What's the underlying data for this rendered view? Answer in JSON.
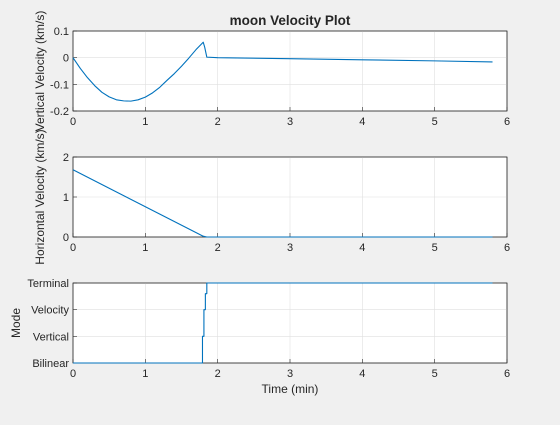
{
  "colors": {
    "background": "#f0f0f0",
    "axes": "#ffffff",
    "line": "#0072bd",
    "grid": "#dfdfdf",
    "text": "#262626"
  },
  "chart_data": [
    {
      "type": "line",
      "title": "moon Velocity Plot",
      "xlabel": "",
      "ylabel": "Vertical Velocity (km/s)",
      "xlim": [
        0,
        6
      ],
      "ylim": [
        -0.2,
        0.1
      ],
      "xticks": [
        0,
        1,
        2,
        3,
        4,
        5,
        6
      ],
      "yticks": [
        -0.2,
        -0.1,
        0,
        0.1
      ],
      "ytick_labels": [
        "-0.2",
        "-0.1",
        "0",
        "0.1"
      ],
      "grid": true,
      "series": [
        {
          "x": [
            0,
            0.1,
            0.2,
            0.3,
            0.4,
            0.5,
            0.6,
            0.7,
            0.8,
            0.9,
            1.0,
            1.1,
            1.2,
            1.3,
            1.4,
            1.5,
            1.6,
            1.7,
            1.8,
            1.82,
            1.85,
            2.0,
            3.0,
            4.0,
            5.0,
            5.8
          ],
          "y": [
            0,
            -0.04,
            -0.075,
            -0.105,
            -0.13,
            -0.147,
            -0.158,
            -0.162,
            -0.163,
            -0.158,
            -0.148,
            -0.132,
            -0.111,
            -0.085,
            -0.06,
            -0.032,
            -0.002,
            0.03,
            0.058,
            0.04,
            0.002,
            0.0,
            -0.004,
            -0.008,
            -0.012,
            -0.016
          ]
        }
      ]
    },
    {
      "type": "line",
      "title": "",
      "xlabel": "",
      "ylabel": "Horizontal Velocity (km/s)",
      "xlim": [
        0,
        6
      ],
      "ylim": [
        0,
        2
      ],
      "xticks": [
        0,
        1,
        2,
        3,
        4,
        5,
        6
      ],
      "yticks": [
        0,
        1,
        2
      ],
      "ytick_labels": [
        "0",
        "1",
        "2"
      ],
      "grid": true,
      "series": [
        {
          "x": [
            0,
            1.8,
            1.85,
            5.8
          ],
          "y": [
            1.68,
            0.02,
            0.0,
            0.0
          ]
        }
      ]
    },
    {
      "type": "line",
      "title": "",
      "xlabel": "Time (min)",
      "ylabel": "Mode",
      "xlim": [
        0,
        6
      ],
      "ylim": [
        0,
        3
      ],
      "xticks": [
        0,
        1,
        2,
        3,
        4,
        5,
        6
      ],
      "yticks": [
        0,
        1,
        2,
        3
      ],
      "ytick_labels": [
        "Bilinear",
        "Vertical",
        "Velocity",
        "Terminal"
      ],
      "grid": true,
      "series": [
        {
          "x": [
            0,
            1.79,
            1.79,
            1.81,
            1.81,
            1.83,
            1.83,
            1.85,
            1.85,
            5.8
          ],
          "y": [
            0,
            0,
            1,
            1,
            2,
            2,
            2.6,
            2.6,
            3,
            3
          ]
        }
      ]
    }
  ]
}
